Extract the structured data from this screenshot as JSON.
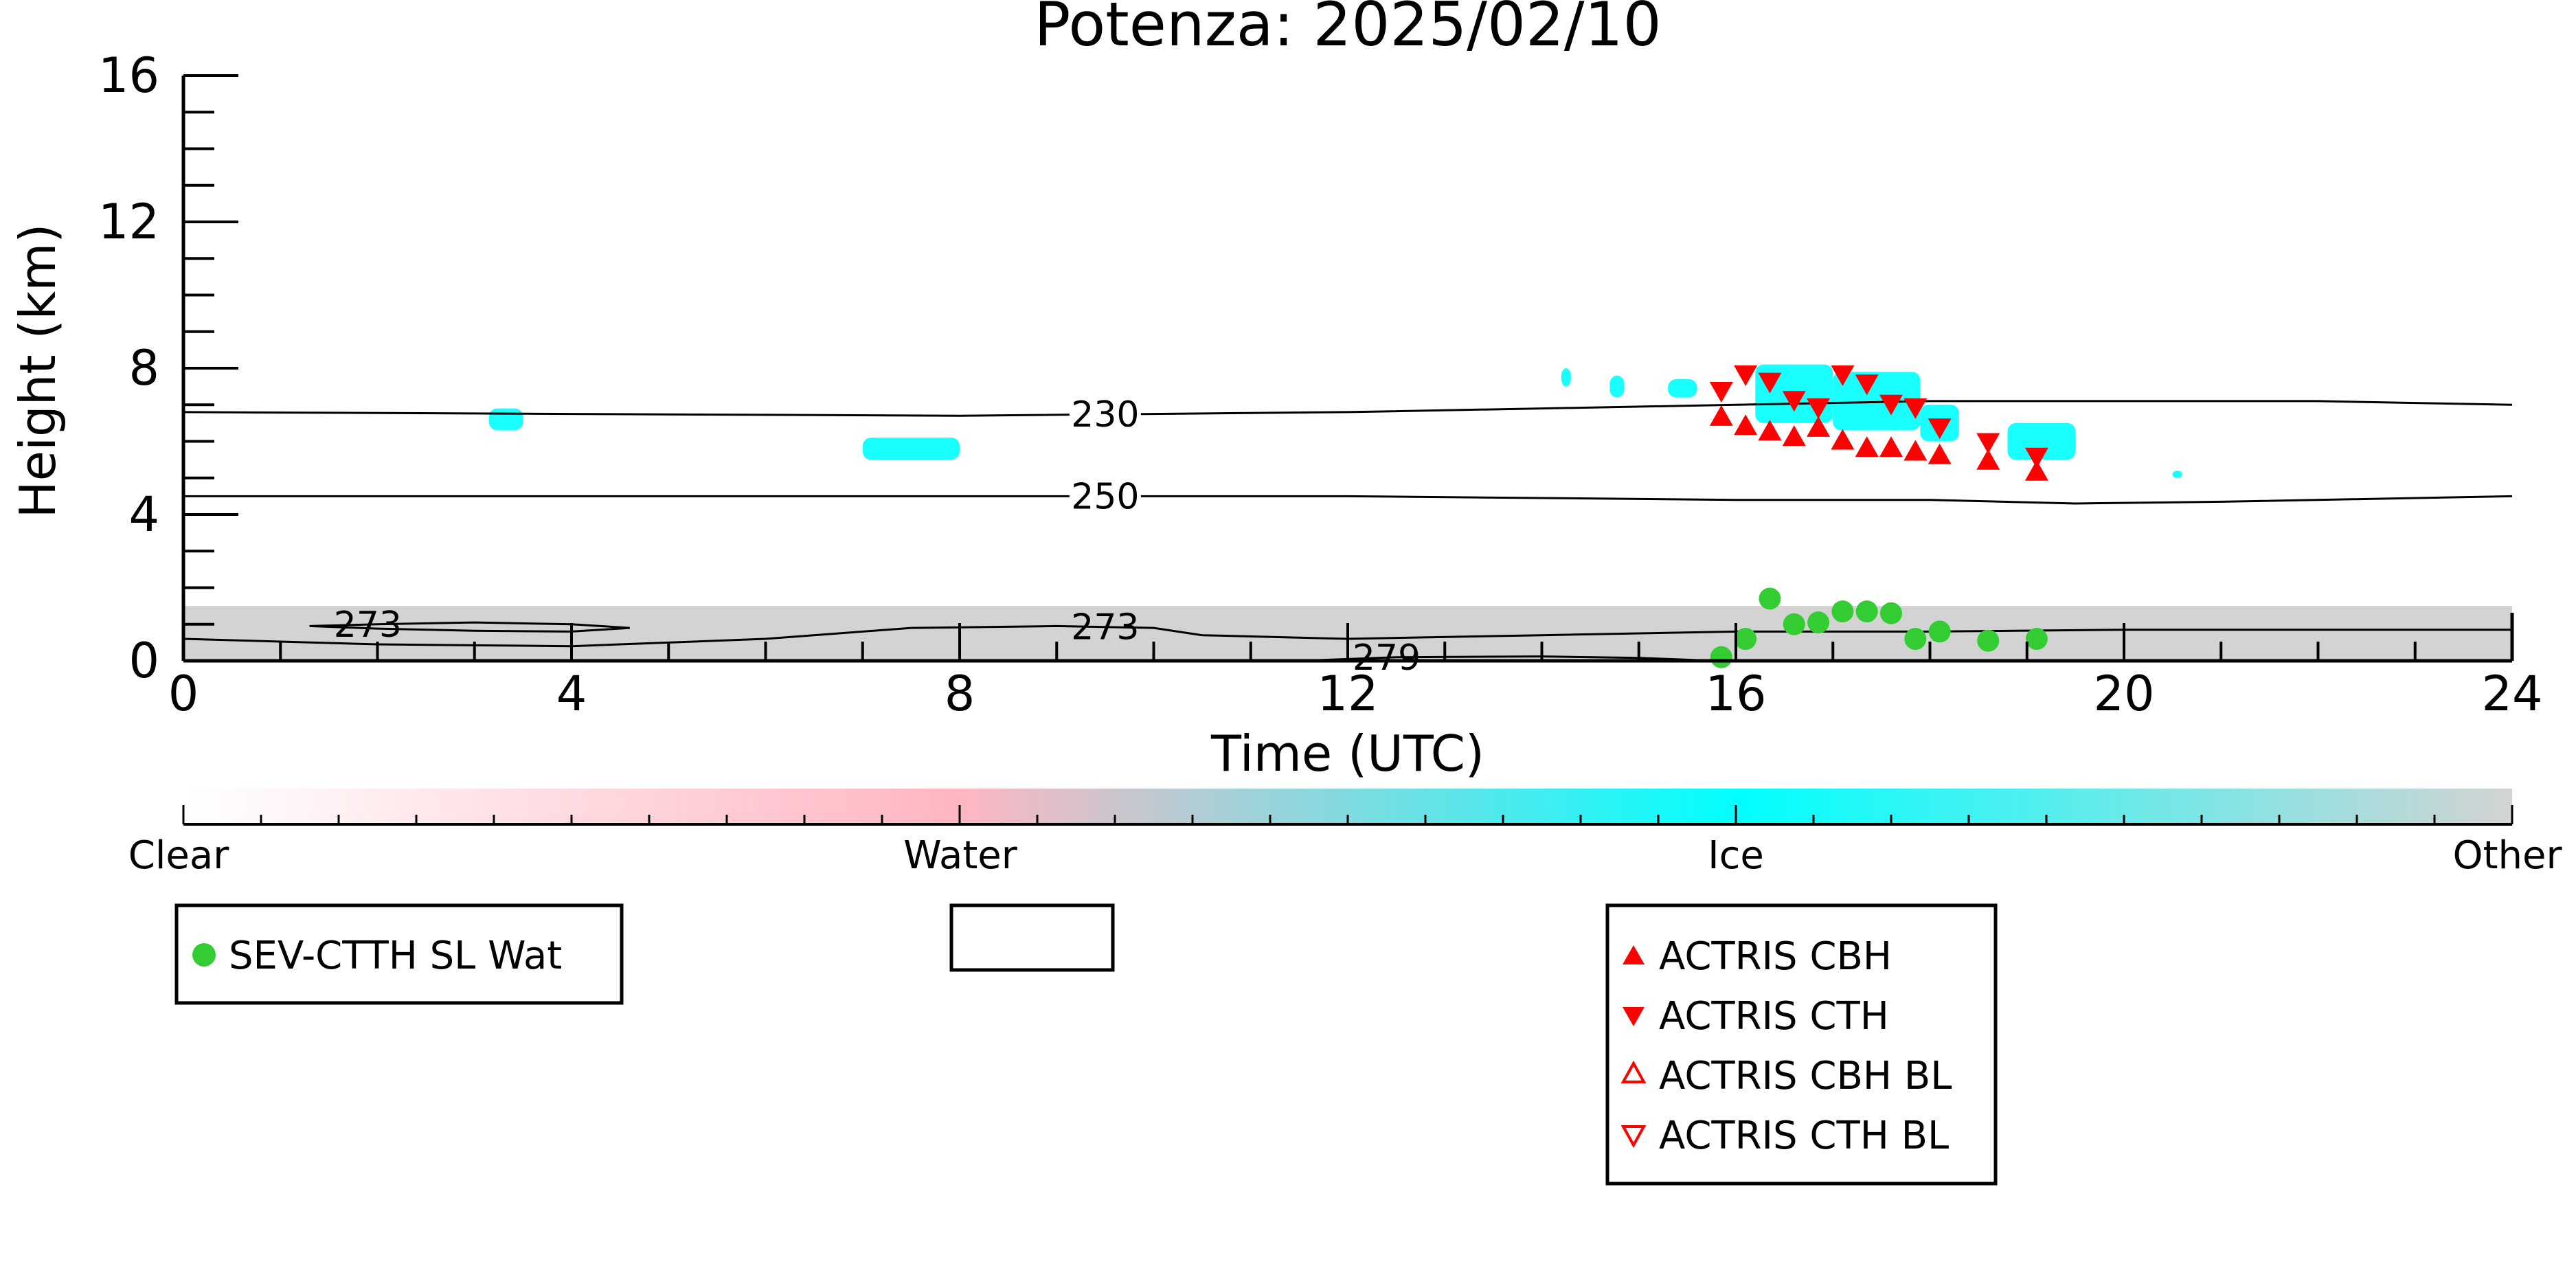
{
  "chart_data": {
    "type": "scatter",
    "title": "Potenza: 2025/02/10",
    "xlabel": "Time (UTC)",
    "ylabel": "Height (km)",
    "xlim": [
      0,
      24
    ],
    "ylim": [
      0,
      16
    ],
    "xticks": [
      0,
      4,
      8,
      12,
      16,
      20,
      24
    ],
    "yticks": [
      0,
      4,
      8,
      12,
      16
    ],
    "grid": false,
    "contours": [
      {
        "label": "230",
        "label_x": 9.5,
        "points": [
          [
            0,
            6.8
          ],
          [
            4,
            6.75
          ],
          [
            8,
            6.7
          ],
          [
            12,
            6.8
          ],
          [
            14,
            6.9
          ],
          [
            16,
            7.0
          ],
          [
            18,
            7.1
          ],
          [
            20,
            7.1
          ],
          [
            22,
            7.1
          ],
          [
            24,
            7.0
          ]
        ]
      },
      {
        "label": "250",
        "label_x": 9.5,
        "points": [
          [
            0,
            4.5
          ],
          [
            4,
            4.5
          ],
          [
            8,
            4.5
          ],
          [
            12,
            4.5
          ],
          [
            14,
            4.45
          ],
          [
            16,
            4.4
          ],
          [
            18,
            4.4
          ],
          [
            19.5,
            4.3
          ],
          [
            21,
            4.35
          ],
          [
            24,
            4.5
          ]
        ]
      },
      {
        "label": "273",
        "label_x": 9.5,
        "points": [
          [
            0,
            0.6
          ],
          [
            2,
            0.45
          ],
          [
            4,
            0.4
          ],
          [
            6,
            0.6
          ],
          [
            7.5,
            0.9
          ],
          [
            9,
            0.95
          ],
          [
            10,
            0.9
          ],
          [
            10.5,
            0.7
          ],
          [
            12,
            0.6
          ],
          [
            14,
            0.7
          ],
          [
            16,
            0.8
          ],
          [
            18,
            0.8
          ],
          [
            20,
            0.85
          ],
          [
            24,
            0.85
          ]
        ]
      },
      {
        "label": "273",
        "label_x": 1.9,
        "points": [
          [
            1.3,
            0.95
          ],
          [
            2,
            1.0
          ],
          [
            3,
            1.05
          ],
          [
            4,
            1.0
          ],
          [
            4.6,
            0.9
          ],
          [
            4,
            0.8
          ],
          [
            3,
            0.82
          ],
          [
            2,
            0.88
          ],
          [
            1.3,
            0.95
          ]
        ]
      },
      {
        "label": "279",
        "label_x": 12.4,
        "points": [
          [
            11.5,
            0.0
          ],
          [
            12.5,
            0.1
          ],
          [
            14,
            0.12
          ],
          [
            15,
            0.08
          ],
          [
            15.8,
            0.0
          ]
        ]
      }
    ],
    "cloud_mask": {
      "other_layer": {
        "x_range": [
          0,
          24
        ],
        "height_km": [
          0,
          1.5
        ],
        "color": "#d3d3d3"
      },
      "ice_patches": [
        {
          "x": 3.15,
          "y": 6.3,
          "w": 0.35,
          "h": 0.6
        },
        {
          "x": 7.0,
          "y": 5.5,
          "w": 1.0,
          "h": 0.6
        },
        {
          "x": 14.2,
          "y": 7.5,
          "w": 0.1,
          "h": 0.5
        },
        {
          "x": 14.7,
          "y": 7.2,
          "w": 0.15,
          "h": 0.6
        },
        {
          "x": 16.2,
          "y": 6.5,
          "w": 0.8,
          "h": 1.6
        },
        {
          "x": 17.0,
          "y": 6.3,
          "w": 0.9,
          "h": 1.6
        },
        {
          "x": 17.9,
          "y": 6.0,
          "w": 0.4,
          "h": 1.0
        },
        {
          "x": 18.8,
          "y": 5.5,
          "w": 0.7,
          "h": 1.0
        },
        {
          "x": 15.3,
          "y": 7.2,
          "w": 0.3,
          "h": 0.5
        },
        {
          "x": 20.5,
          "y": 5.0,
          "w": 0.1,
          "h": 0.2
        }
      ]
    },
    "series": [
      {
        "name": "SEV-CTTH SL Wat",
        "marker": "circle",
        "color": "#33cc33",
        "points": [
          [
            15.85,
            0.1
          ],
          [
            16.1,
            0.6
          ],
          [
            16.35,
            1.7
          ],
          [
            16.6,
            1.0
          ],
          [
            16.85,
            1.05
          ],
          [
            17.1,
            1.35
          ],
          [
            17.35,
            1.35
          ],
          [
            17.6,
            1.3
          ],
          [
            17.85,
            0.6
          ],
          [
            18.1,
            0.8
          ],
          [
            18.6,
            0.55
          ],
          [
            19.1,
            0.6
          ]
        ]
      },
      {
        "name": "ACTRIS CBH",
        "marker": "triangle-up",
        "color": "#ff0000",
        "points": [
          [
            15.85,
            6.65
          ],
          [
            16.1,
            6.4
          ],
          [
            16.35,
            6.25
          ],
          [
            16.6,
            6.1
          ],
          [
            16.85,
            6.35
          ],
          [
            17.1,
            6.0
          ],
          [
            17.35,
            5.8
          ],
          [
            17.6,
            5.8
          ],
          [
            17.85,
            5.7
          ],
          [
            18.1,
            5.6
          ],
          [
            18.6,
            5.45
          ],
          [
            19.1,
            5.15
          ]
        ]
      },
      {
        "name": "ACTRIS CTH",
        "marker": "triangle-down",
        "color": "#ff0000",
        "points": [
          [
            15.85,
            7.4
          ],
          [
            16.1,
            7.85
          ],
          [
            16.35,
            7.65
          ],
          [
            16.6,
            7.15
          ],
          [
            16.85,
            6.95
          ],
          [
            17.1,
            7.85
          ],
          [
            17.35,
            7.6
          ],
          [
            17.6,
            7.05
          ],
          [
            17.85,
            6.95
          ],
          [
            18.1,
            6.4
          ],
          [
            18.6,
            6.0
          ],
          [
            19.1,
            5.6
          ]
        ]
      },
      {
        "name": "ACTRIS CBH BL",
        "marker": "triangle-up-open",
        "color": "#ff0000",
        "points": []
      },
      {
        "name": "ACTRIS CTH BL",
        "marker": "triangle-down-open",
        "color": "#ff0000",
        "points": []
      }
    ],
    "colorbar": {
      "labels": [
        "Clear",
        "Water",
        "Ice",
        "Other"
      ],
      "colors": [
        "#ffffff",
        "#ffb6c1",
        "#00ffff",
        "#d3d3d3"
      ]
    },
    "legend_empty_box": "",
    "legend_placement": "below"
  }
}
